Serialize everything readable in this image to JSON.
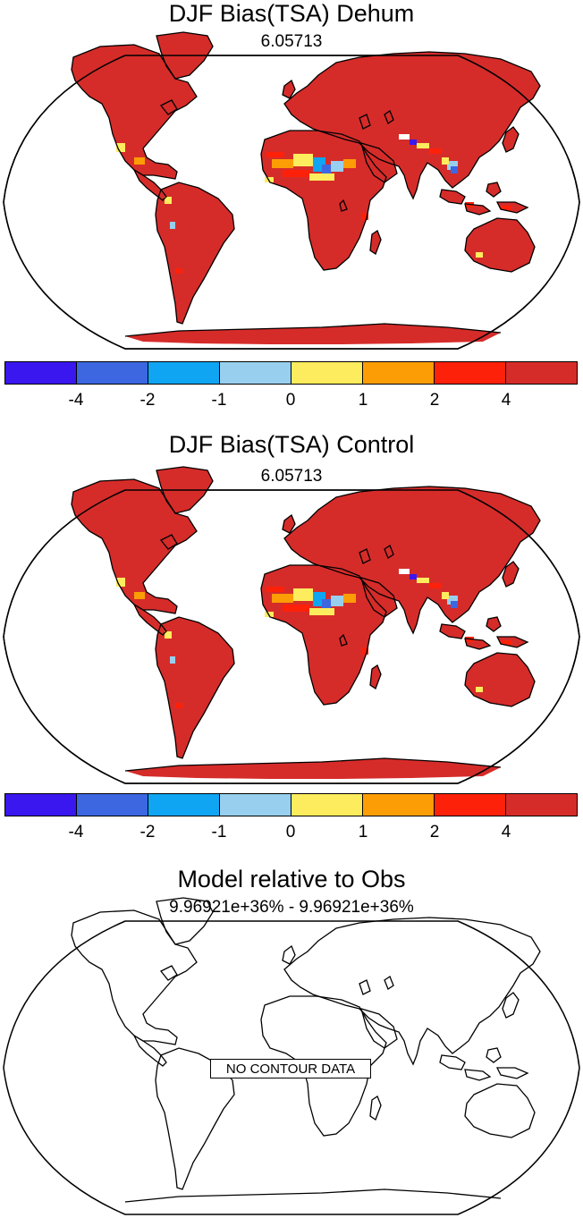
{
  "panels": [
    {
      "title": "DJF Bias(TSA) Dehum",
      "subtitle": "6.05713",
      "colorbar": {
        "colors": [
          "#3a17ee",
          "#3c67e0",
          "#0fa5f3",
          "#98cfee",
          "#fdec5d",
          "#fd9d06",
          "#fd210a",
          "#d52c2a"
        ],
        "tick_labels": [
          "-4",
          "-2",
          "-1",
          "0",
          "1",
          "2",
          "4"
        ]
      }
    },
    {
      "title": "DJF Bias(TSA) Control",
      "subtitle": "6.05713",
      "colorbar": {
        "colors": [
          "#3a17ee",
          "#3c67e0",
          "#0fa5f3",
          "#98cfee",
          "#fdec5d",
          "#fd9d06",
          "#fd210a",
          "#d52c2a"
        ],
        "tick_labels": [
          "-4",
          "-2",
          "-1",
          "0",
          "1",
          "2",
          "4"
        ]
      }
    },
    {
      "title": "Model relative to Obs",
      "subtitle": "9.96921e+36% - 9.96921e+36%",
      "no_data_label": "NO CONTOUR DATA"
    }
  ],
  "land_color": "#d52c2a",
  "projection": "robinson"
}
